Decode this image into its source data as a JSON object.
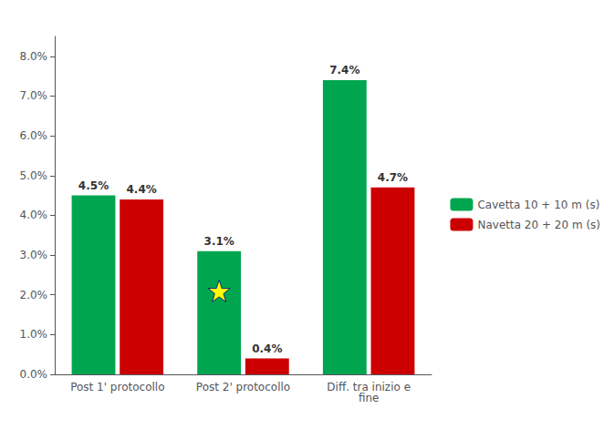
{
  "chart_data": {
    "type": "bar",
    "categories": [
      "Post 1' protocollo",
      "Post 2' protocollo",
      "Diff. tra inizio e\nfine"
    ],
    "series": [
      {
        "name": "Cavetta 10 + 10 m (s)",
        "color": "#00A550",
        "values": [
          4.5,
          3.1,
          7.4
        ],
        "value_labels": [
          "4.5%",
          "3.1%",
          "7.4%"
        ]
      },
      {
        "name": "Navetta 20 + 20 m (s)",
        "color": "#CC0000",
        "values": [
          4.4,
          0.4,
          4.7
        ],
        "value_labels": [
          "4.4%",
          "0.4%",
          "4.7%"
        ]
      }
    ],
    "ylim": [
      0,
      8.5
    ],
    "yticks": [
      {
        "value": 0.0,
        "label": "0.0%"
      },
      {
        "value": 1.0,
        "label": "1.0%"
      },
      {
        "value": 2.0,
        "label": "2.0%"
      },
      {
        "value": 3.0,
        "label": "3.0%"
      },
      {
        "value": 4.0,
        "label": "4.0%"
      },
      {
        "value": 5.0,
        "label": "5.0%"
      },
      {
        "value": 6.0,
        "label": "6.0%"
      },
      {
        "value": 7.0,
        "label": "7.0%"
      },
      {
        "value": 8.0,
        "label": "8.0%"
      }
    ],
    "grid": false,
    "legend": "right",
    "data_labels": true,
    "annotations": [
      {
        "x": "Post 2' protocollo",
        "series": "Cavetta 10 + 10 m (s)",
        "y": 2.1,
        "marker": "star",
        "color": "yellow"
      }
    ]
  }
}
